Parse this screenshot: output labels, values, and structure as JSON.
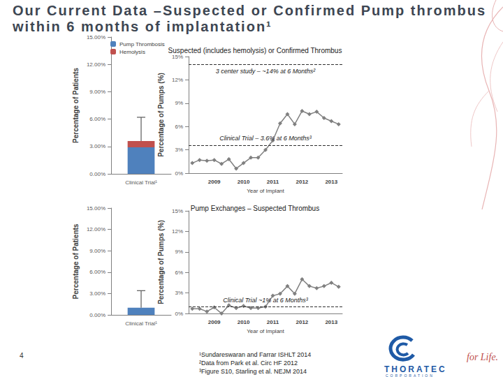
{
  "title": "Our Current Data –Suspected or Confirmed Pump thrombus within 6 months of implantation¹",
  "page": 4,
  "footnotes": [
    "¹Sundareswaran and Farrar ISHLT 2014",
    "²Data from Park et al. Circ HF 2012",
    "³Figure S10, Starling et al. NEJM 2014"
  ],
  "logo": {
    "name": "THORATEC",
    "sub": "CORPORATION",
    "tagline": "for Life."
  },
  "chart_data": [
    {
      "type": "bar",
      "stacked": true,
      "categories": [
        "Clinical Trial¹"
      ],
      "series": [
        {
          "name": "Pump Thrombosis",
          "color": "#4f81bd",
          "values": [
            2.9
          ]
        },
        {
          "name": "Hemolysis",
          "color": "#c0504d",
          "values": [
            0.7
          ]
        }
      ],
      "error_bar": {
        "low": [
          3.6
        ],
        "high": [
          6.2
        ]
      },
      "y_label": "Percentage of Patients",
      "ylim": [
        0,
        15
      ],
      "yticks": [
        {
          "value": 0,
          "label": "0.00%"
        },
        {
          "value": 3,
          "label": "3.00%"
        },
        {
          "value": 6,
          "label": "6.00%"
        },
        {
          "value": 9,
          "label": "9.00%"
        },
        {
          "value": 12,
          "label": "12.00%"
        },
        {
          "value": 15,
          "label": "15.00%"
        }
      ],
      "legend": "upper left",
      "grid": false
    },
    {
      "type": "line",
      "title": "Suspected (includes hemolysis) or Confirmed Thrombus",
      "categories": [
        null,
        null,
        null,
        "2009",
        null,
        null,
        null,
        "2010",
        null,
        null,
        null,
        "2011",
        null,
        null,
        null,
        "2012",
        null,
        null,
        null,
        "2013",
        null
      ],
      "values": [
        1.3,
        1.7,
        1.6,
        1.7,
        1.2,
        1.8,
        0.6,
        1.3,
        2.0,
        2.0,
        3.0,
        4.2,
        6.4,
        7.6,
        6.3,
        8.0,
        7.6,
        7.9,
        7.1,
        6.7,
        6.3
      ],
      "color": "#808080",
      "marker": "diamond",
      "x_label": "Year of Implant",
      "y_label": "Percentage of Pumps (%)",
      "ylim": [
        0,
        15
      ],
      "yticks": [
        {
          "value": 0,
          "label": "0%"
        },
        {
          "value": 3,
          "label": "3%"
        },
        {
          "value": 6,
          "label": "6%"
        },
        {
          "value": 9,
          "label": "9%"
        },
        {
          "value": 12,
          "label": "12%"
        },
        {
          "value": 15,
          "label": "15%"
        }
      ],
      "annotations": [
        {
          "text": "3 center study – ~14% at 6 Months²",
          "y": 14
        },
        {
          "text": "Clinical Trial – 3.6% at 6 Months³",
          "y": 3.6
        }
      ],
      "grid": false
    },
    {
      "type": "bar",
      "categories": [
        "Clinical Trial¹"
      ],
      "series": [
        {
          "color": "#4f81bd",
          "values": [
            1.0
          ]
        }
      ],
      "error_bar": {
        "low": [
          1.0
        ],
        "high": [
          3.4
        ]
      },
      "y_label": "Percentage of Patients",
      "ylim": [
        0,
        15
      ],
      "yticks": [
        {
          "value": 0,
          "label": "0.00%"
        },
        {
          "value": 3,
          "label": "3.00%"
        },
        {
          "value": 6,
          "label": "6.00%"
        },
        {
          "value": 9,
          "label": "9.00%"
        },
        {
          "value": 12,
          "label": "12.00%"
        },
        {
          "value": 15,
          "label": "15.00%"
        }
      ],
      "grid": false
    },
    {
      "type": "line",
      "title": "Pump Exchanges – Suspected Thrombus",
      "categories": [
        null,
        null,
        null,
        "2009",
        null,
        null,
        null,
        "2010",
        null,
        null,
        null,
        "2011",
        null,
        null,
        null,
        "2012",
        null,
        null,
        null,
        "2013",
        null
      ],
      "values": [
        0.7,
        0.7,
        0.3,
        0.9,
        0.0,
        1.2,
        0.8,
        1.1,
        0.8,
        0.8,
        1.0,
        2.6,
        2.9,
        4.0,
        2.9,
        5.0,
        4.0,
        3.7,
        4.0,
        4.5,
        3.9
      ],
      "color": "#808080",
      "marker": "diamond",
      "x_label": "Year of Implant",
      "y_label": "Percentage of Pumps (%)",
      "ylim": [
        0,
        15
      ],
      "yticks": [
        {
          "value": 0,
          "label": "0%"
        },
        {
          "value": 3,
          "label": "3%"
        },
        {
          "value": 6,
          "label": "6%"
        },
        {
          "value": 9,
          "label": "9%"
        },
        {
          "value": 12,
          "label": "12%"
        },
        {
          "value": 15,
          "label": "15%"
        }
      ],
      "annotations": [
        {
          "text": "Clinical Trial ~1% at 6 Months³",
          "y": 1
        }
      ],
      "grid": false
    }
  ]
}
